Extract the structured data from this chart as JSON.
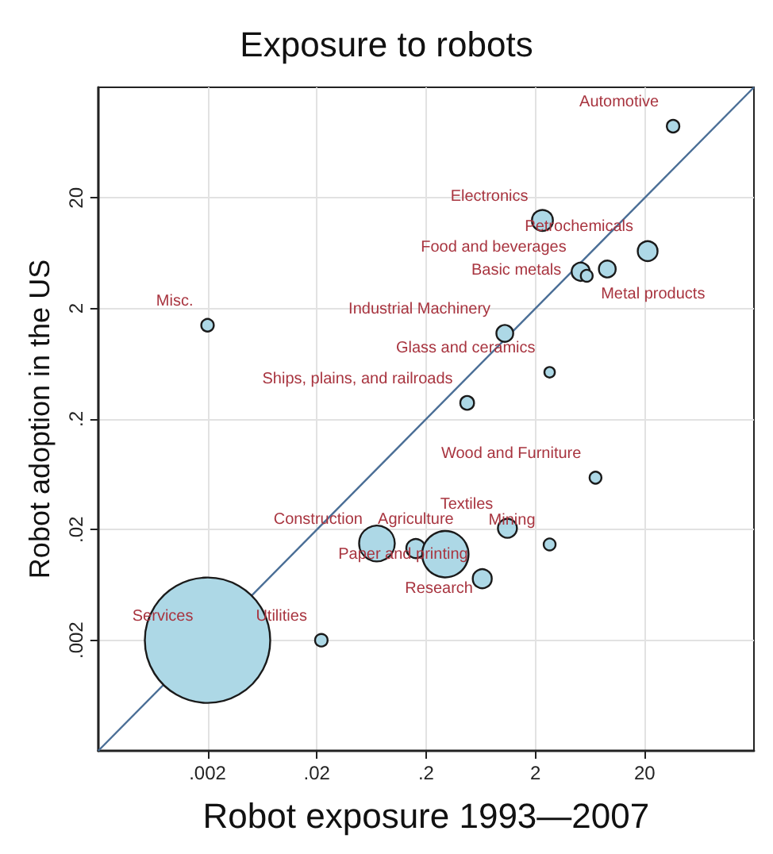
{
  "chart_data": {
    "type": "bubble",
    "title": "Exposure to robots",
    "xlabel": "Robot exposure 1993—2007",
    "ylabel": "Robot adoption in the US",
    "log": "xy",
    "grid": true,
    "xlim": [
      0.0002,
      200
    ],
    "ylim": [
      0.0002,
      200
    ],
    "xticks": [
      {
        "value": 0.002,
        "label": ".002"
      },
      {
        "value": 0.02,
        "label": ".02"
      },
      {
        "value": 0.2,
        "label": ".2"
      },
      2,
      20
    ],
    "yticks": [
      {
        "value": 0.002,
        "label": ".002"
      },
      {
        "value": 0.02,
        "label": ".02"
      },
      {
        "value": 0.2,
        "label": ".2"
      },
      2,
      20
    ],
    "series": [
      {
        "color": "#add8e6",
        "x": [
          36.4,
          2.32,
          21.3,
          5.2,
          5.9,
          9.1,
          0.002,
          1.05,
          2.7,
          0.475,
          7.1,
          1.11,
          2.7,
          0.071,
          0.161,
          0.3,
          0.653,
          0.002,
          0.022
        ],
        "values": [
          89,
          12.5,
          6.6,
          4.3,
          3.95,
          4.55,
          1.41,
          1.19,
          0.53,
          0.28,
          0.059,
          0.0206,
          0.0147,
          0.015,
          0.0135,
          0.012,
          0.0072,
          0.002,
          0.002
        ],
        "sizes": [
          0.01,
          0.028,
          0.025,
          0.021,
          0.009,
          0.018,
          0.01,
          0.018,
          0.007,
          0.012,
          0.009,
          0.023,
          0.009,
          0.081,
          0.023,
          0.137,
          0.023,
          1,
          0.01
        ]
      },
      {
        "type": "line",
        "color": "#4a6e96",
        "x": [
          0.0002,
          200
        ],
        "values": [
          0.0002,
          200
        ]
      }
    ],
    "annotations": [
      {
        "text": "Automotive",
        "x": 36.4,
        "y": 89
      },
      {
        "text": "Electronics",
        "x": 2.32,
        "y": 12.5
      },
      {
        "text": "Petrochemicals",
        "x": 21.3,
        "y": 6.6
      },
      {
        "text": "Food and beverages",
        "x": 5.2,
        "y": 4.3
      },
      {
        "text": "Basic metals",
        "x": 5.9,
        "y": 3.95
      },
      {
        "text": "Metal products",
        "x": 9.1,
        "y": 4.55
      },
      {
        "text": "Misc.",
        "x": 0.002,
        "y": 1.41
      },
      {
        "text": "Industrial Machinery",
        "x": 1.05,
        "y": 1.19
      },
      {
        "text": "Glass and ceramics",
        "x": 2.7,
        "y": 0.53
      },
      {
        "text": "Ships, plains, and railroads",
        "x": 0.475,
        "y": 0.28
      },
      {
        "text": "Wood and Furniture",
        "x": 7.1,
        "y": 0.059
      },
      {
        "text": "Textiles",
        "x": 1.11,
        "y": 0.0206
      },
      {
        "text": "Mining",
        "x": 2.7,
        "y": 0.0147
      },
      {
        "text": "Construction",
        "x": 0.071,
        "y": 0.015
      },
      {
        "text": "Agriculture",
        "x": 0.161,
        "y": 0.0135
      },
      {
        "text": "Research",
        "x": 0.3,
        "y": 0.012
      },
      {
        "text": "Paper and printing",
        "x": 0.653,
        "y": 0.0072
      },
      {
        "text": "Services",
        "x": 0.002,
        "y": 0.002
      },
      {
        "text": "Utilities",
        "x": 0.022,
        "y": 0.002
      }
    ]
  }
}
